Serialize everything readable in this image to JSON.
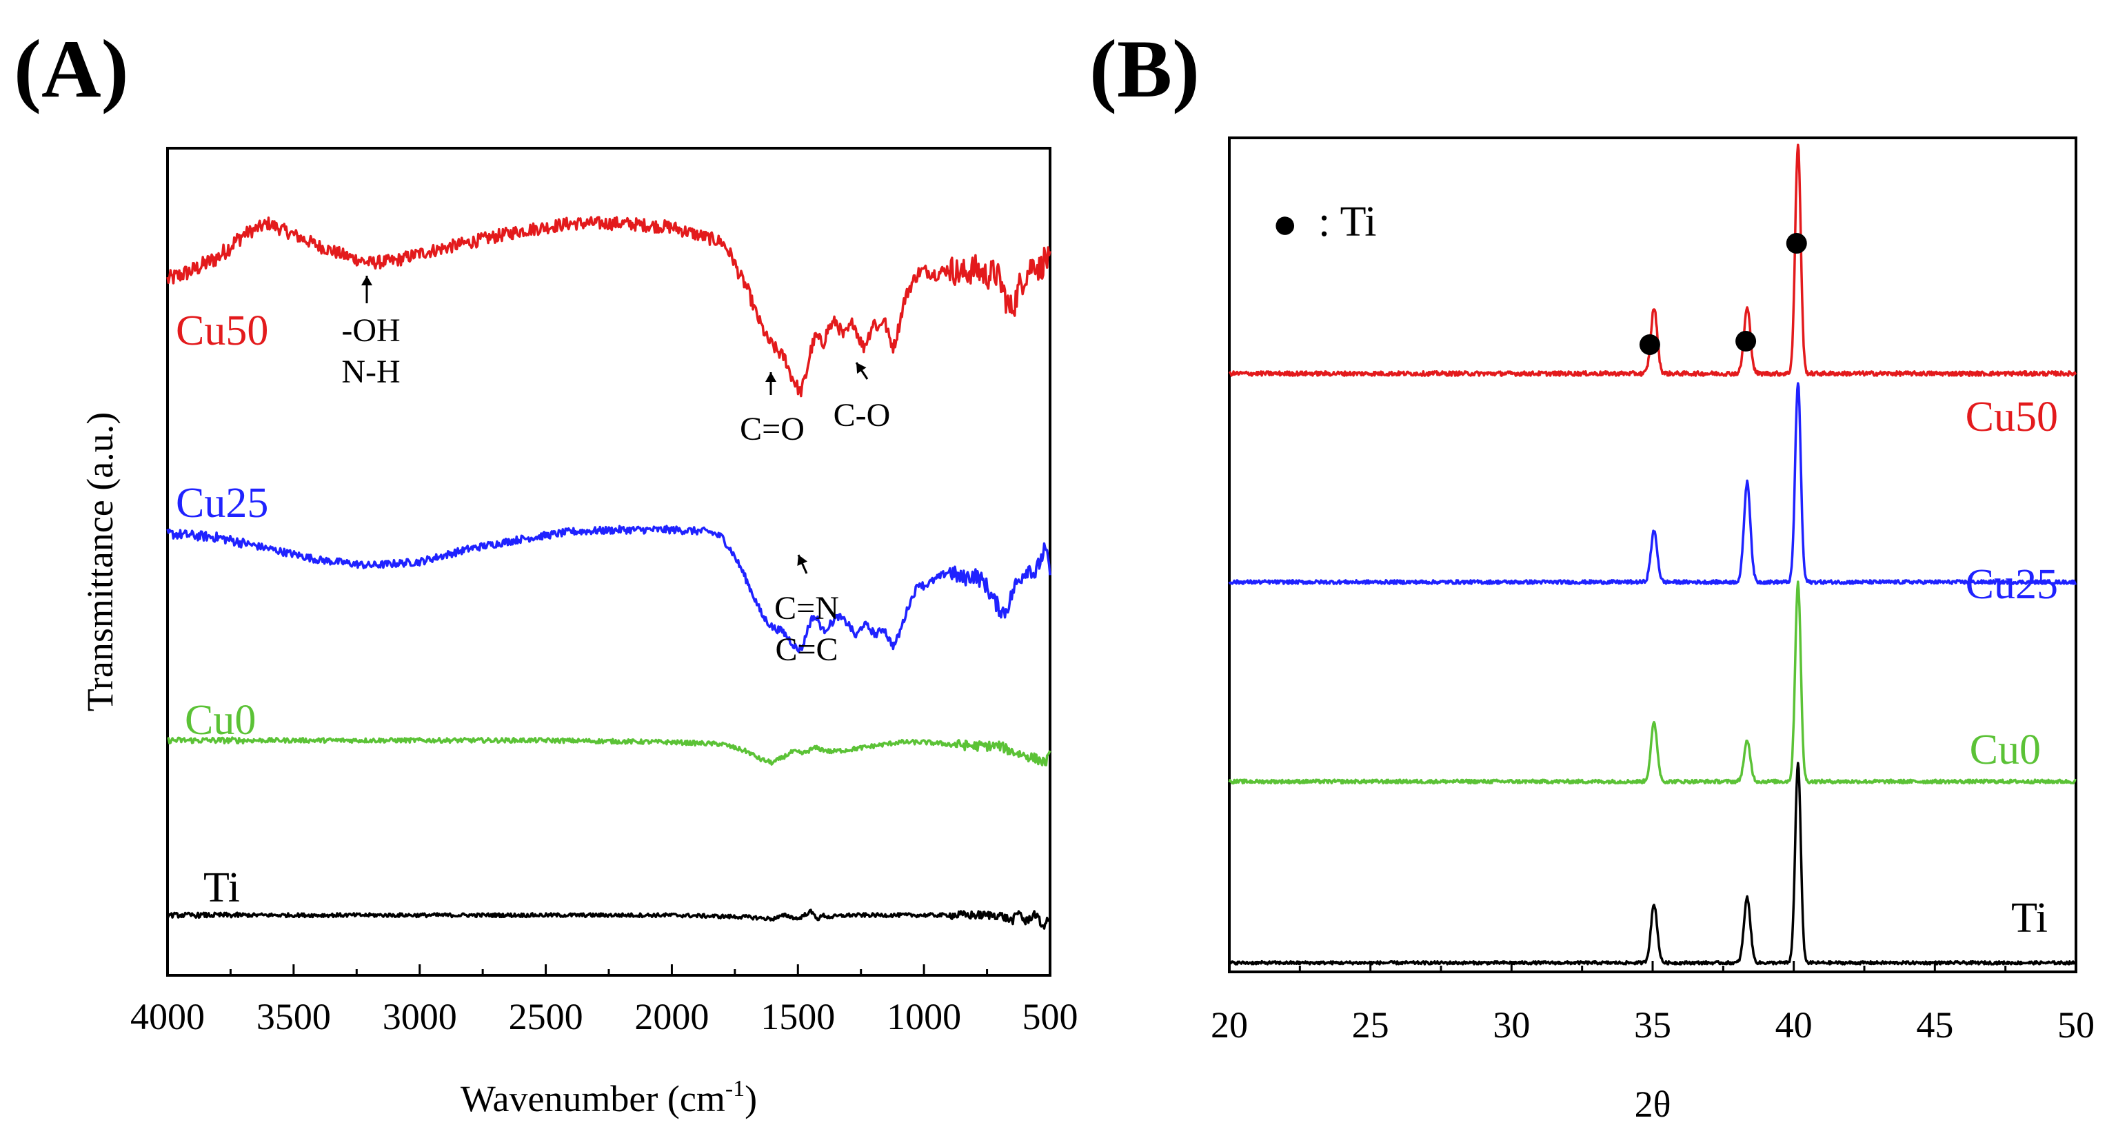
{
  "panels": {
    "A": {
      "label": "(A)"
    },
    "B": {
      "label": "(B)"
    }
  },
  "chart_data": [
    {
      "id": "A",
      "type": "line",
      "title": "",
      "xlabel": "Wavenumber (cm",
      "xlabel_sup": "-1",
      "xlabel_end": ")",
      "ylabel": "Transmittance (a.u.)",
      "xlim": [
        4000,
        500
      ],
      "xticks": [
        4000,
        3500,
        3000,
        2500,
        2000,
        1500,
        1000,
        500
      ],
      "yticks": [],
      "series": [
        {
          "name": "Cu50",
          "color": "#e31a1c",
          "offset": 3.7,
          "noise": 0.035,
          "x": [
            4000,
            3900,
            3800,
            3700,
            3600,
            3500,
            3400,
            3300,
            3200,
            3100,
            3000,
            2800,
            2600,
            2400,
            2200,
            2000,
            1900,
            1800,
            1760,
            1740,
            1700,
            1660,
            1620,
            1580,
            1550,
            1530,
            1510,
            1490,
            1470,
            1450,
            1430,
            1400,
            1380,
            1350,
            1320,
            1300,
            1280,
            1260,
            1240,
            1220,
            1200,
            1180,
            1160,
            1140,
            1120,
            1100,
            1080,
            1060,
            1040,
            1020,
            1000,
            950,
            900,
            850,
            800,
            750,
            720,
            700,
            680,
            660,
            640,
            620,
            600,
            580,
            560,
            540,
            520,
            500
          ],
          "y": [
            0,
            0.05,
            0.12,
            0.24,
            0.3,
            0.24,
            0.18,
            0.13,
            0.09,
            0.1,
            0.14,
            0.2,
            0.26,
            0.3,
            0.3,
            0.28,
            0.24,
            0.2,
            0.12,
            0.05,
            -0.05,
            -0.2,
            -0.32,
            -0.38,
            -0.42,
            -0.5,
            -0.55,
            -0.6,
            -0.52,
            -0.38,
            -0.3,
            -0.34,
            -0.26,
            -0.22,
            -0.3,
            -0.27,
            -0.22,
            -0.3,
            -0.36,
            -0.3,
            -0.22,
            -0.26,
            -0.2,
            -0.3,
            -0.36,
            -0.25,
            -0.12,
            -0.05,
            0.0,
            0.04,
            0.05,
            0.03,
            0.06,
            0.03,
            0.06,
            0.02,
            0.04,
            0.0,
            -0.08,
            -0.16,
            -0.12,
            -0.03,
            0.02,
            0.06,
            0.1,
            0.05,
            0.12,
            0.08
          ]
        },
        {
          "name": "Cu25",
          "color": "#1f22ff",
          "offset": 2.35,
          "noise": 0.02,
          "x": [
            4000,
            3800,
            3600,
            3400,
            3200,
            3000,
            2800,
            2600,
            2400,
            2200,
            2000,
            1850,
            1800,
            1760,
            1720,
            1680,
            1640,
            1600,
            1560,
            1530,
            1500,
            1480,
            1460,
            1440,
            1420,
            1400,
            1370,
            1340,
            1300,
            1270,
            1240,
            1220,
            1190,
            1160,
            1140,
            1120,
            1100,
            1060,
            1020,
            1000,
            950,
            900,
            850,
            800,
            760,
            730,
            700,
            680,
            660,
            640,
            620,
            600,
            580,
            560,
            540,
            520,
            500
          ],
          "y": [
            0,
            -0.02,
            -0.08,
            -0.14,
            -0.17,
            -0.15,
            -0.08,
            -0.03,
            0.01,
            0.02,
            0.02,
            0.01,
            -0.02,
            -0.1,
            -0.2,
            -0.32,
            -0.44,
            -0.5,
            -0.52,
            -0.57,
            -0.62,
            -0.6,
            -0.5,
            -0.44,
            -0.46,
            -0.52,
            -0.48,
            -0.44,
            -0.48,
            -0.55,
            -0.48,
            -0.5,
            -0.54,
            -0.5,
            -0.56,
            -0.6,
            -0.54,
            -0.38,
            -0.26,
            -0.28,
            -0.24,
            -0.2,
            -0.24,
            -0.22,
            -0.26,
            -0.34,
            -0.4,
            -0.42,
            -0.36,
            -0.28,
            -0.24,
            -0.2,
            -0.18,
            -0.22,
            -0.15,
            -0.08,
            -0.2
          ]
        },
        {
          "name": "Cu0",
          "color": "#5bc236",
          "offset": 1.25,
          "noise": 0.012,
          "x": [
            4000,
            3500,
            3000,
            2500,
            2000,
            1800,
            1700,
            1650,
            1600,
            1560,
            1520,
            1480,
            1450,
            1430,
            1400,
            1370,
            1300,
            1200,
            1100,
            1000,
            900,
            800,
            700,
            650,
            600,
            550,
            520,
            500
          ],
          "y": [
            0,
            0.0,
            0.0,
            0.0,
            -0.01,
            -0.02,
            -0.06,
            -0.1,
            -0.12,
            -0.09,
            -0.06,
            -0.07,
            -0.05,
            -0.04,
            -0.05,
            -0.06,
            -0.05,
            -0.03,
            -0.01,
            -0.01,
            -0.02,
            -0.03,
            -0.03,
            -0.06,
            -0.08,
            -0.1,
            -0.12,
            -0.08
          ]
        },
        {
          "name": "Ti",
          "color": "#000000",
          "offset": 0.32,
          "noise": 0.01,
          "x": [
            4000,
            3000,
            2000,
            1700,
            1600,
            1550,
            1500,
            1450,
            1420,
            1400,
            1380,
            1300,
            1200,
            1000,
            800,
            700,
            650,
            620,
            600,
            560,
            530,
            500
          ],
          "y": [
            0,
            0.0,
            0.0,
            -0.01,
            -0.02,
            0.0,
            -0.02,
            0.02,
            -0.02,
            0.0,
            -0.01,
            0.0,
            0.0,
            0.0,
            0.0,
            0.0,
            -0.03,
            0.02,
            -0.04,
            0.01,
            -0.06,
            -0.02
          ]
        }
      ],
      "series_labels": [
        "Cu50",
        "Cu25",
        "Cu0",
        "Ti"
      ],
      "annotations": [
        {
          "lines": [
            "-OH",
            "N-H"
          ],
          "x": 3200
        },
        {
          "lines": [
            "C=O"
          ],
          "x": 1600
        },
        {
          "lines": [
            "C-O"
          ],
          "x": 1270
        },
        {
          "lines": [
            "C=N",
            "C=C"
          ],
          "x": 1460
        }
      ]
    },
    {
      "id": "B",
      "type": "line",
      "title": "",
      "xlabel": "2θ",
      "ylabel": "",
      "xlim": [
        20,
        50
      ],
      "xticks": [
        20,
        25,
        30,
        35,
        40,
        45,
        50
      ],
      "yticks": [],
      "legend": {
        "marker": "●",
        "text": ": Ti",
        "position": "top-left"
      },
      "peak_markers_x": [
        34.9,
        38.3,
        40.1
      ],
      "peaks_x": [
        35.05,
        38.35,
        40.15
      ],
      "series": [
        {
          "name": "Cu50",
          "color": "#e31a1c",
          "offset": 3.3,
          "peaks_height": [
            0.36,
            0.36,
            1.26
          ],
          "noise": 0.012
        },
        {
          "name": "Cu25",
          "color": "#1f22ff",
          "offset": 2.15,
          "peaks_height": [
            0.28,
            0.55,
            1.1
          ],
          "noise": 0.01
        },
        {
          "name": "Cu0",
          "color": "#5bc236",
          "offset": 1.05,
          "peaks_height": [
            0.32,
            0.22,
            1.1
          ],
          "noise": 0.01
        },
        {
          "name": "Ti",
          "color": "#000000",
          "offset": 0.05,
          "peaks_height": [
            0.32,
            0.36,
            1.1
          ],
          "noise": 0.008
        }
      ],
      "series_labels": [
        "Cu50",
        "Cu25",
        "Cu0",
        "Ti"
      ]
    }
  ]
}
